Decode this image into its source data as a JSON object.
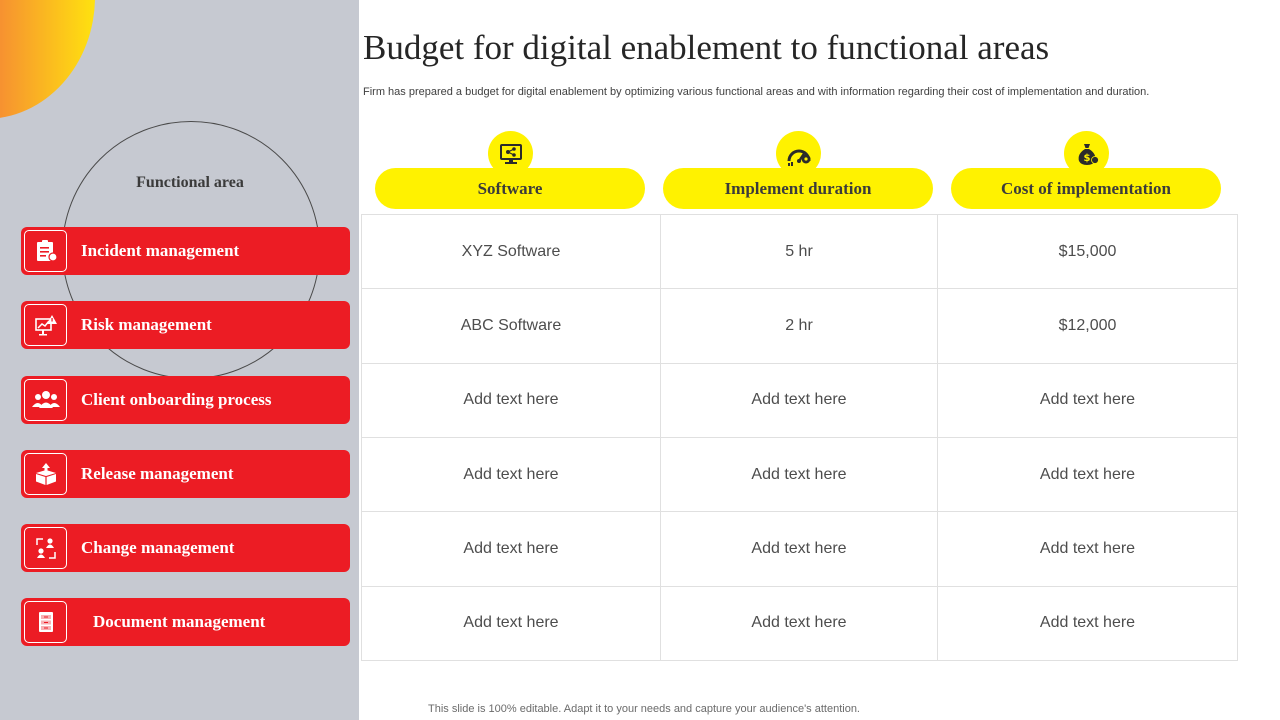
{
  "title": "Budget for digital enablement to functional areas",
  "subtitle": "Firm has prepared a budget for  digital enablement by optimizing various functional areas and with information regarding their cost of implementation and duration.",
  "functional_area": {
    "label": "Functional area",
    "items": [
      {
        "label": "Incident management",
        "icon": "incident-report-icon"
      },
      {
        "label": "Risk management",
        "icon": "risk-warning-icon"
      },
      {
        "label": "Client onboarding process",
        "icon": "users-group-icon"
      },
      {
        "label": "Release management",
        "icon": "release-box-icon"
      },
      {
        "label": "Change management",
        "icon": "change-users-icon"
      },
      {
        "label": "Document management",
        "icon": "document-cabinet-icon"
      }
    ]
  },
  "columns": [
    {
      "label": "Software",
      "icon": "monitor-network-icon"
    },
    {
      "label": "Implement duration",
      "icon": "speed-gauge-icon"
    },
    {
      "label": "Cost of implementation",
      "icon": "money-bag-icon"
    }
  ],
  "rows": [
    [
      "XYZ  Software",
      "5 hr",
      "$15,000"
    ],
    [
      "ABC Software",
      "2 hr",
      "$12,000"
    ],
    [
      "Add text here",
      "Add text here",
      "Add text here"
    ],
    [
      "Add text here",
      "Add text here",
      "Add text here"
    ],
    [
      "Add text here",
      "Add text here",
      "Add text here"
    ],
    [
      "Add text here",
      "Add text here",
      "Add text here"
    ]
  ],
  "footer": "This slide is 100% editable.  Adapt it to your needs and capture your audience's attention.",
  "colors": {
    "accent_red": "#ec1c24",
    "accent_yellow": "#fff200",
    "panel_gray": "#c6c9d1"
  }
}
